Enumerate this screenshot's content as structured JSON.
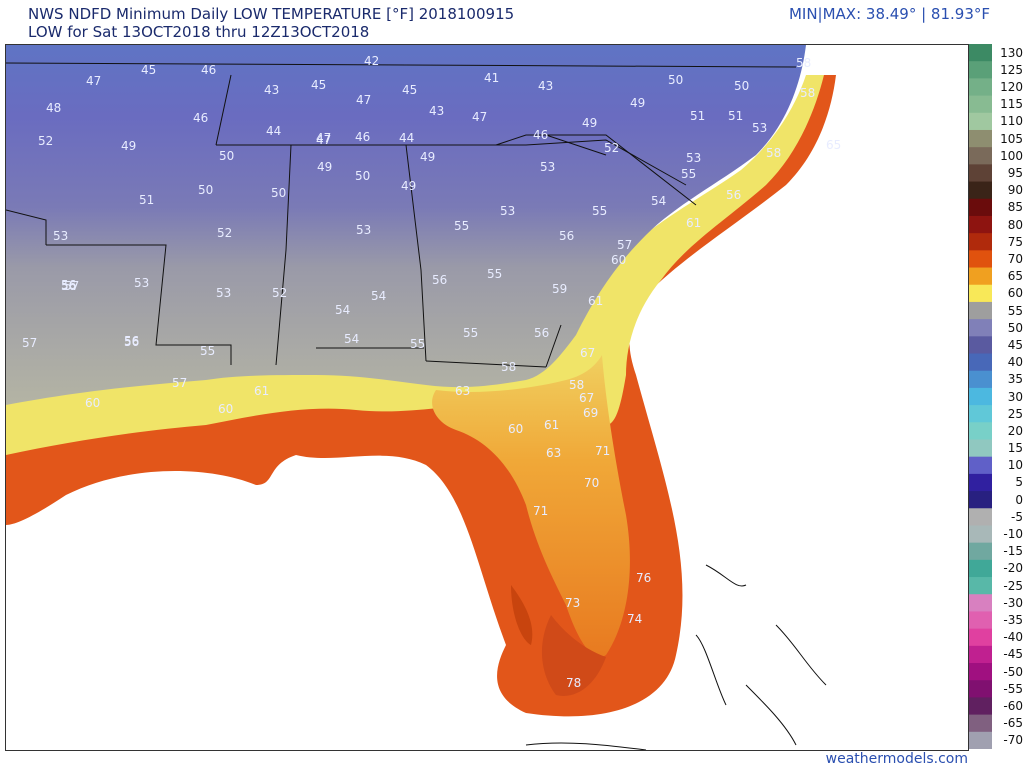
{
  "header": {
    "title_line1": "NWS NDFD Minimum Daily LOW TEMPERATURE [°F]  2018100915",
    "title_line2": "LOW for Sat 13OCT2018 thru 12Z13OCT2018",
    "minmax": "MIN|MAX:  38.49°  | 81.93°F"
  },
  "colorbar": {
    "ticks": [
      "130",
      "125",
      "120",
      "115",
      "110",
      "105",
      "100",
      "95",
      "90",
      "85",
      "80",
      "75",
      "70",
      "65",
      "60",
      "55",
      "50",
      "45",
      "40",
      "35",
      "30",
      "25",
      "20",
      "15",
      "10",
      "5",
      "0",
      "-5",
      "-10",
      "-15",
      "-20",
      "-25",
      "-30",
      "-35",
      "-40",
      "-45",
      "-50",
      "-55",
      "-60",
      "-65",
      "-70"
    ],
    "colors": [
      "#3c8a64",
      "#5aa078",
      "#74b088",
      "#88bb92",
      "#a0c8a0",
      "#8e8e70",
      "#7a6a5a",
      "#5e4236",
      "#3a2418",
      "#6a0c0c",
      "#8e1410",
      "#b02a0c",
      "#e0520e",
      "#f0a020",
      "#f8e858",
      "#9e9e9e",
      "#8080b8",
      "#5a5aa0",
      "#4868b8",
      "#4a90d0",
      "#4cb8e0",
      "#60c8d8",
      "#78d0c8",
      "#90c8c0",
      "#6060c8",
      "#3020a0",
      "#282080",
      "#b0b0b0",
      "#a8b8b8",
      "#70a8a0",
      "#40a898",
      "#58b8a8",
      "#d880c0",
      "#e060b0",
      "#e040a0",
      "#c02090",
      "#a01080",
      "#801070",
      "#602060",
      "#806080",
      "#a0a0b0"
    ]
  },
  "map": {
    "temperature_labels": [
      {
        "v": "42"
      },
      {
        "v": "58"
      },
      {
        "v": "47"
      },
      {
        "v": "45"
      },
      {
        "v": "46"
      },
      {
        "v": "43"
      },
      {
        "v": "45"
      },
      {
        "v": "47"
      },
      {
        "v": "45"
      },
      {
        "v": "41"
      },
      {
        "v": "43"
      },
      {
        "v": "50"
      },
      {
        "v": "50"
      },
      {
        "v": "58"
      },
      {
        "v": "48"
      },
      {
        "v": "46"
      },
      {
        "v": "47"
      },
      {
        "v": "43"
      },
      {
        "v": "47"
      },
      {
        "v": "49"
      },
      {
        "v": "49"
      },
      {
        "v": "51"
      },
      {
        "v": "51"
      },
      {
        "v": "52"
      },
      {
        "v": "49"
      },
      {
        "v": "44"
      },
      {
        "v": "47"
      },
      {
        "v": "46"
      },
      {
        "v": "44"
      },
      {
        "v": "46"
      },
      {
        "v": "52"
      },
      {
        "v": "53"
      },
      {
        "v": "65"
      },
      {
        "v": "50"
      },
      {
        "v": "49"
      },
      {
        "v": "50"
      },
      {
        "v": "49"
      },
      {
        "v": "53"
      },
      {
        "v": "58"
      },
      {
        "v": "53"
      },
      {
        "v": "55"
      },
      {
        "v": "51"
      },
      {
        "v": "50"
      },
      {
        "v": "50"
      },
      {
        "v": "49"
      },
      {
        "v": "54"
      },
      {
        "v": "56"
      },
      {
        "v": "53"
      },
      {
        "v": "52"
      },
      {
        "v": "53"
      },
      {
        "v": "55"
      },
      {
        "v": "53"
      },
      {
        "v": "55"
      },
      {
        "v": "61"
      },
      {
        "v": "56"
      },
      {
        "v": "56"
      },
      {
        "v": "57"
      },
      {
        "v": "60"
      },
      {
        "v": "56"
      },
      {
        "v": "53"
      },
      {
        "v": "53"
      },
      {
        "v": "52"
      },
      {
        "v": "54"
      },
      {
        "v": "54"
      },
      {
        "v": "56"
      },
      {
        "v": "55"
      },
      {
        "v": "59"
      },
      {
        "v": "61"
      },
      {
        "v": "57"
      },
      {
        "v": "56"
      },
      {
        "v": "55"
      },
      {
        "v": "54"
      },
      {
        "v": "55"
      },
      {
        "v": "55"
      },
      {
        "v": "56"
      },
      {
        "v": "67"
      },
      {
        "v": "57"
      },
      {
        "v": "56"
      },
      {
        "v": "58"
      },
      {
        "v": "58"
      },
      {
        "v": "57"
      },
      {
        "v": "63"
      },
      {
        "v": "60"
      },
      {
        "v": "61"
      },
      {
        "v": "60"
      },
      {
        "v": "69"
      },
      {
        "v": "67"
      },
      {
        "v": "60"
      },
      {
        "v": "61"
      },
      {
        "v": "63"
      },
      {
        "v": "71"
      },
      {
        "v": "70"
      },
      {
        "v": "71"
      },
      {
        "v": "76"
      },
      {
        "v": "73"
      },
      {
        "v": "74"
      },
      {
        "v": "78"
      }
    ]
  },
  "footer": {
    "credit": "weathermodels.com"
  }
}
